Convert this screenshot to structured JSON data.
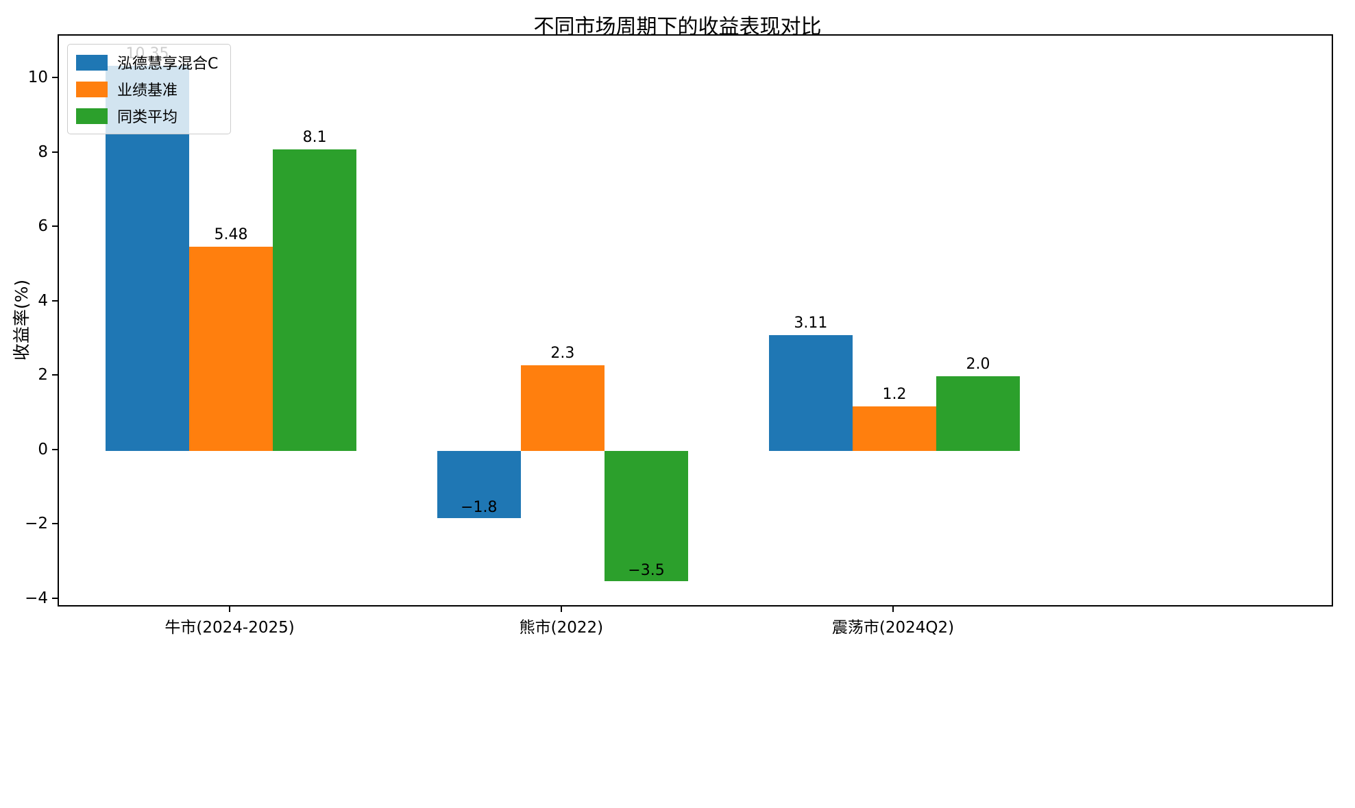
{
  "chart_data": {
    "type": "bar",
    "title": "不同市场周期下的收益表现对比",
    "xlabel": "",
    "ylabel": "收益率(%)",
    "categories": [
      "牛市(2024-2025)",
      "熊市(2022)",
      "震荡市(2024Q2)"
    ],
    "series": [
      {
        "name": "泓德慧享混合C",
        "color": "#1f77b4",
        "values": [
          10.35,
          -1.8,
          3.11
        ]
      },
      {
        "name": "业绩基准",
        "color": "#ff7f0e",
        "values": [
          5.48,
          2.3,
          1.2
        ]
      },
      {
        "name": "同类平均",
        "color": "#2ca02c",
        "values": [
          8.1,
          -3.5,
          2.0
        ]
      }
    ],
    "value_labels": [
      [
        "10.35",
        "−1.8",
        "3.11"
      ],
      [
        "5.48",
        "2.3",
        "1.2"
      ],
      [
        "8.1",
        "−3.5",
        "2.0"
      ]
    ],
    "yticks": [
      -4,
      -2,
      0,
      2,
      4,
      6,
      8,
      10
    ],
    "ylim": [
      -4.22,
      11.16
    ],
    "grid": false,
    "legend_position": "upper-left",
    "group_center_fractions": [
      0.1349,
      0.3949,
      0.655
    ],
    "bar_width_fraction": 0.0656
  }
}
